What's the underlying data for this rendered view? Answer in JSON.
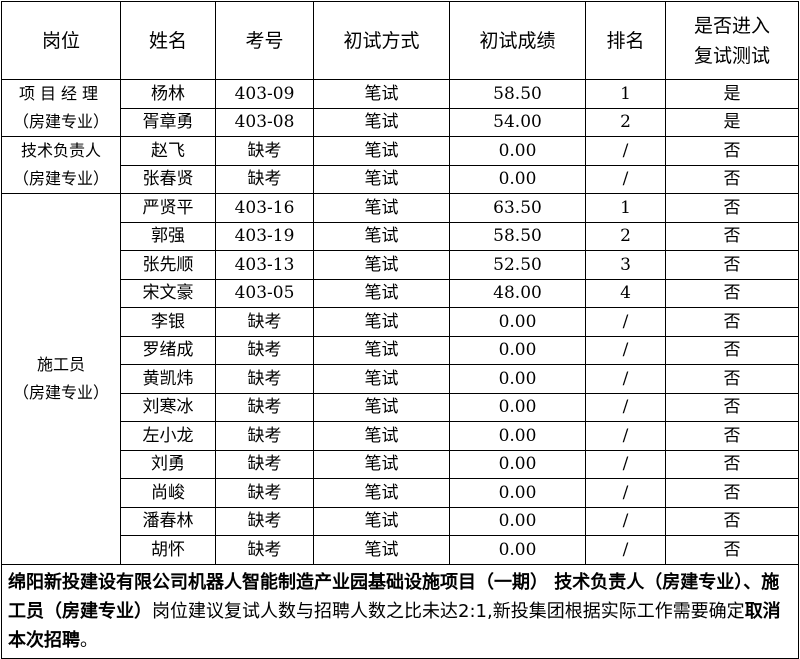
{
  "headers": [
    "岗位",
    "姓名",
    "考号",
    "初试方式",
    "初试成绩",
    "排名",
    "是否进入复试测试"
  ],
  "groups": [
    {
      "position": "项目经理",
      "sub": "（房建专业）"
    },
    {
      "position": "技术负责人",
      "sub": "（房建专业）"
    },
    {
      "position": "施工员",
      "sub": "（房建专业）"
    }
  ],
  "rows": [
    [
      "杨林",
      "403-09",
      "笔试",
      "58.50",
      "1",
      "是"
    ],
    [
      "胥章勇",
      "403-08",
      "笔试",
      "54.00",
      "2",
      "是"
    ],
    [
      "赵飞",
      "缺考",
      "笔试",
      "0.00",
      "/",
      "否"
    ],
    [
      "张春贤",
      "缺考",
      "笔试",
      "0.00",
      "/",
      "否"
    ],
    [
      "严贤平",
      "403-16",
      "笔试",
      "63.50",
      "1",
      "否"
    ],
    [
      "郭强",
      "403-19",
      "笔试",
      "58.50",
      "2",
      "否"
    ],
    [
      "张先顺",
      "403-13",
      "笔试",
      "52.50",
      "3",
      "否"
    ],
    [
      "宋文豪",
      "403-05",
      "笔试",
      "48.00",
      "4",
      "否"
    ],
    [
      "李银",
      "缺考",
      "笔试",
      "0.00",
      "/",
      "否"
    ],
    [
      "罗绪成",
      "缺考",
      "笔试",
      "0.00",
      "/",
      "否"
    ],
    [
      "黄凯炜",
      "缺考",
      "笔试",
      "0.00",
      "/",
      "否"
    ],
    [
      "刘寒冰",
      "缺考",
      "笔试",
      "0.00",
      "/",
      "否"
    ],
    [
      "左小龙",
      "缺考",
      "笔试",
      "0.00",
      "/",
      "否"
    ],
    [
      "刘勇",
      "缺考",
      "笔试",
      "0.00",
      "/",
      "否"
    ],
    [
      "尚峻",
      "缺考",
      "笔试",
      "0.00",
      "/",
      "否"
    ],
    [
      "潘春林",
      "缺考",
      "笔试",
      "0.00",
      "/",
      "否"
    ],
    [
      "胡怀",
      "缺考",
      "笔试",
      "0.00",
      "/",
      "否"
    ]
  ],
  "footer": {
    "bold1": "绵阳新投建设有限公司机器人智能制造产业园基础设施项目（一期） 技术负责人（房建专业）、施工员（房建专业）",
    "normal": "岗位建议复试人数与招聘人数之比未达2:1,新投集团根据实际工作需要确定",
    "bold2": "取消本次招聘",
    "end": "。"
  }
}
